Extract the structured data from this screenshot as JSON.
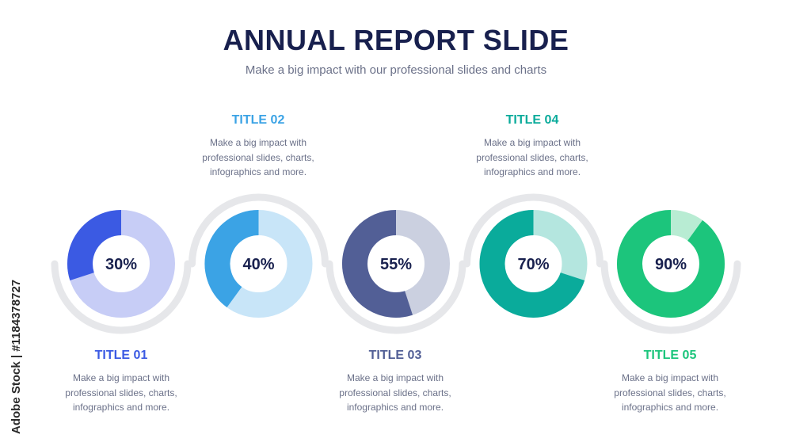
{
  "header": {
    "title": "ANNUAL REPORT SLIDE",
    "subtitle": "Make a big impact with our professional slides and charts"
  },
  "watermark": "Adobe Stock | #1184378727",
  "colors": {
    "track": "#e6e7ea",
    "item1": {
      "fill": "#3b5ae3",
      "rest": "#c7cdf6",
      "title": "#3b5ae3"
    },
    "item2": {
      "fill": "#3ba3e5",
      "rest": "#c8e5f8",
      "title": "#3ba3e5"
    },
    "item3": {
      "fill": "#525f96",
      "rest": "#cbd0e0",
      "title": "#525f96"
    },
    "item4": {
      "fill": "#0aab9b",
      "rest": "#b4e6df",
      "title": "#0aab9b"
    },
    "item5": {
      "fill": "#1cc57c",
      "rest": "#b8ecd3",
      "title": "#1cc57c"
    }
  },
  "chart_data": {
    "type": "pie",
    "style": "donut",
    "series": [
      {
        "name": "TITLE 01",
        "value": 30,
        "label": "30%"
      },
      {
        "name": "TITLE 02",
        "value": 40,
        "label": "40%"
      },
      {
        "name": "TITLE 03",
        "value": 55,
        "label": "55%"
      },
      {
        "name": "TITLE 04",
        "value": 70,
        "label": "70%"
      },
      {
        "name": "TITLE 05",
        "value": 90,
        "label": "90%"
      }
    ]
  },
  "items": [
    {
      "title": "TITLE 01",
      "description": "Make a big impact with professional slides, charts, infographics and more."
    },
    {
      "title": "TITLE 02",
      "description": "Make a big impact with professional slides, charts, infographics and more."
    },
    {
      "title": "TITLE 03",
      "description": "Make a big impact with professional slides, charts, infographics and more."
    },
    {
      "title": "TITLE 04",
      "description": "Make a big impact with professional slides, charts, infographics and more."
    },
    {
      "title": "TITLE 05",
      "description": "Make a big impact with professional slides, charts, infographics and more."
    }
  ]
}
